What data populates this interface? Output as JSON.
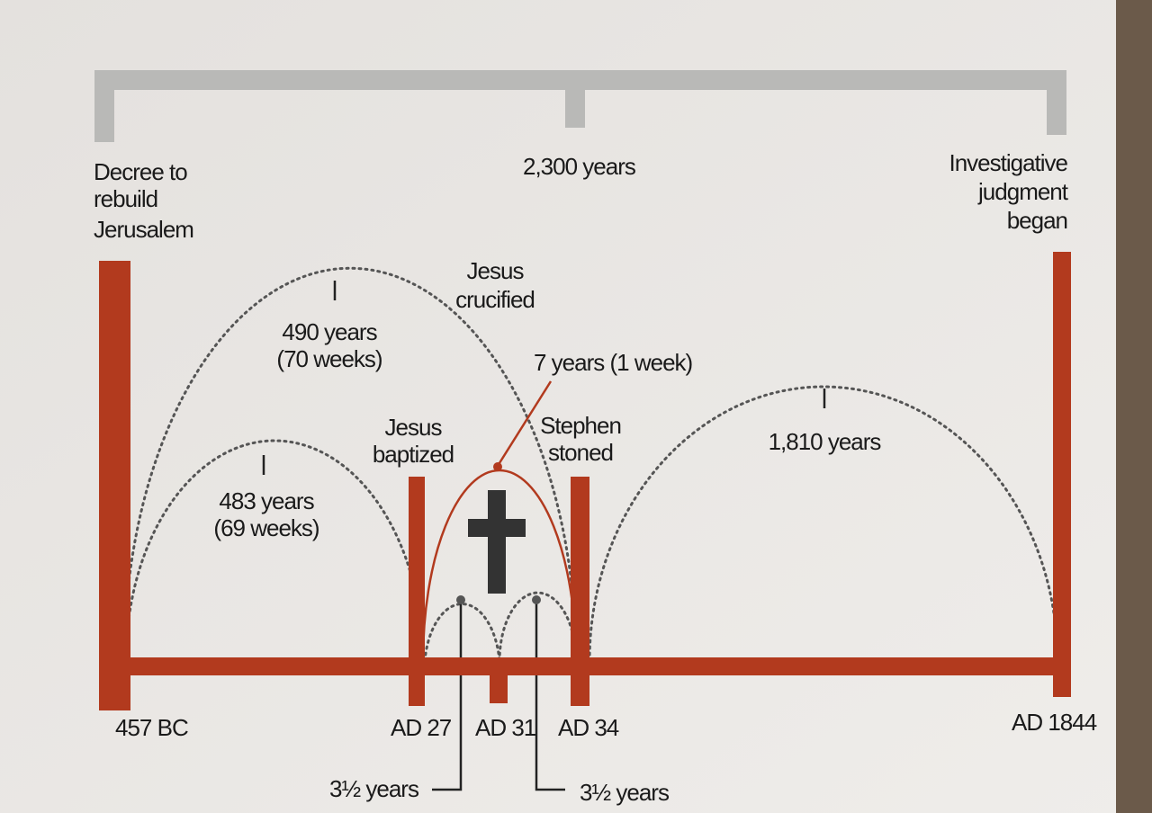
{
  "span_label": "2,300 years",
  "events": [
    {
      "label": [
        "Decree to",
        "rebuild",
        "Jerusalem"
      ],
      "date": "457 BC"
    },
    {
      "label": [
        "Jesus",
        "baptized"
      ],
      "date": "AD 27"
    },
    {
      "label": [
        "Jesus",
        "crucified"
      ],
      "date": "AD 31"
    },
    {
      "label": [
        "Stephen",
        "stoned"
      ],
      "date": "AD 34"
    },
    {
      "label": [
        "Investigative",
        "judgment",
        "began"
      ],
      "date": "AD 1844"
    }
  ],
  "periods": [
    {
      "label": [
        "490 years",
        "(70 weeks)"
      ]
    },
    {
      "label": [
        "483 years",
        "(69 weeks)"
      ]
    },
    {
      "label": [
        "7 years (1 week)"
      ]
    },
    {
      "label": [
        "1,810 years"
      ]
    },
    {
      "label": [
        "3½ years"
      ]
    },
    {
      "label": [
        "3½ years"
      ]
    }
  ]
}
